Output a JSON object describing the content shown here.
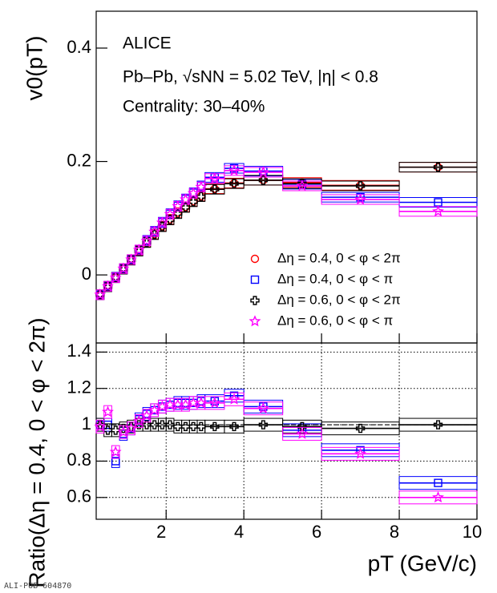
{
  "chart_data": [
    {
      "type": "scatter",
      "ylabel": "v0(pT)",
      "annotations": [
        "ALICE",
        "Pb–Pb, √sNN = 5.02 TeV, |η| < 0.8",
        "Centrality: 30–40%"
      ],
      "x": [
        0.3,
        0.5,
        0.7,
        0.9,
        1.1,
        1.3,
        1.5,
        1.7,
        1.9,
        2.1,
        2.3,
        2.5,
        2.7,
        2.9,
        3.25,
        3.75,
        4.5,
        5.5,
        7,
        9
      ],
      "xerr": [
        0.1,
        0.1,
        0.1,
        0.1,
        0.1,
        0.1,
        0.1,
        0.1,
        0.1,
        0.1,
        0.1,
        0.1,
        0.1,
        0.1,
        0.25,
        0.25,
        0.5,
        0.5,
        1,
        1
      ],
      "xlim": [
        0.2,
        10
      ],
      "xticks": [
        2,
        4,
        6,
        8,
        10
      ],
      "ylim": [
        -0.12,
        0.465
      ],
      "yticks": [
        0,
        0.2,
        0.4
      ],
      "grid": false,
      "legend": "lower right",
      "series": [
        {
          "name": "Δη = 0.4, 0 < φ < 2π",
          "color": "#ff0000",
          "marker": "circle",
          "values": [
            -0.035,
            -0.02,
            -0.004,
            0.011,
            0.027,
            0.043,
            0.058,
            0.072,
            0.086,
            0.098,
            0.11,
            0.12,
            0.13,
            0.139,
            0.152,
            0.162,
            0.167,
            0.163,
            0.158,
            0.19
          ]
        },
        {
          "name": "Δη = 0.4, 0 < φ < π",
          "color": "#0000ff",
          "marker": "square",
          "values": [
            -0.035,
            -0.02,
            -0.004,
            0.011,
            0.027,
            0.044,
            0.061,
            0.077,
            0.093,
            0.108,
            0.122,
            0.134,
            0.145,
            0.157,
            0.172,
            0.188,
            0.183,
            0.16,
            0.137,
            0.128
          ]
        },
        {
          "name": "Δη = 0.6, 0 < φ < 2π",
          "color": "#000000",
          "marker": "cross",
          "values": [
            -0.035,
            -0.021,
            -0.005,
            0.01,
            0.026,
            0.042,
            0.057,
            0.071,
            0.085,
            0.097,
            0.108,
            0.119,
            0.129,
            0.138,
            0.151,
            0.161,
            0.167,
            0.161,
            0.157,
            0.19
          ]
        },
        {
          "name": "Δη = 0.6, 0 < φ < π",
          "color": "#ff00ff",
          "marker": "star",
          "values": [
            -0.035,
            -0.02,
            -0.005,
            0.011,
            0.027,
            0.044,
            0.06,
            0.076,
            0.092,
            0.107,
            0.121,
            0.133,
            0.144,
            0.155,
            0.17,
            0.184,
            0.181,
            0.157,
            0.133,
            0.112
          ]
        }
      ]
    },
    {
      "type": "scatter",
      "ylabel": "Ratio(Δη = 0.4, 0 < φ < 2π)",
      "xlabel": "pT (GeV/c)",
      "x": [
        0.3,
        0.5,
        0.7,
        0.9,
        1.1,
        1.3,
        1.5,
        1.7,
        1.9,
        2.1,
        2.3,
        2.5,
        2.7,
        2.9,
        3.25,
        3.75,
        4.5,
        5.5,
        7,
        9
      ],
      "xerr": [
        0.1,
        0.1,
        0.1,
        0.1,
        0.1,
        0.1,
        0.1,
        0.1,
        0.1,
        0.1,
        0.1,
        0.1,
        0.1,
        0.1,
        0.25,
        0.25,
        0.5,
        0.5,
        1,
        1
      ],
      "xlim": [
        0.2,
        10
      ],
      "xticks": [
        2,
        4,
        6,
        8,
        10
      ],
      "ylim": [
        0.48,
        1.45
      ],
      "yticks": [
        0.6,
        0.8,
        1,
        1.2,
        1.4
      ],
      "grid": true,
      "reference_line": 1,
      "series": [
        {
          "color": "#0000ff",
          "marker": "square",
          "values": [
            1.0,
            1.0,
            0.8,
            0.95,
            0.98,
            1.03,
            1.06,
            1.08,
            1.1,
            1.11,
            1.12,
            1.12,
            1.12,
            1.13,
            1.13,
            1.16,
            1.1,
            0.97,
            0.86,
            0.68
          ]
        },
        {
          "color": "#000000",
          "marker": "cross",
          "values": [
            1.0,
            0.97,
            0.97,
            0.98,
            0.99,
            1.0,
            1.0,
            1.0,
            1.0,
            1.0,
            0.99,
            0.99,
            0.99,
            0.99,
            0.99,
            0.99,
            1.0,
            0.99,
            0.98,
            1.0
          ]
        },
        {
          "color": "#ff00ff",
          "marker": "star",
          "values": [
            0.99,
            1.07,
            0.85,
            0.96,
            0.98,
            1.02,
            1.05,
            1.08,
            1.1,
            1.11,
            1.11,
            1.11,
            1.12,
            1.12,
            1.12,
            1.14,
            1.09,
            0.95,
            0.84,
            0.6
          ]
        }
      ]
    }
  ],
  "footer": "ALI-PUB-604870"
}
